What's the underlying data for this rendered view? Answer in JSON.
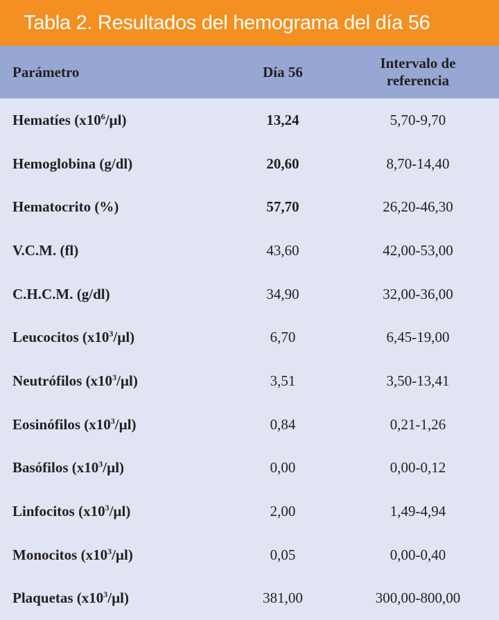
{
  "title": "Tabla 2. Resultados del hemograma del día 56",
  "headers": {
    "param": "Parámetro",
    "day": "Día 56",
    "ref_line1": "Intervalo de",
    "ref_line2": "referencia"
  },
  "rows": [
    {
      "pre": "Hematíes (x10",
      "sup": "6",
      "post": "/µl)",
      "value": "13,24",
      "bold": true,
      "ref": "5,70-9,70"
    },
    {
      "pre": "Hemoglobina (g/dl)",
      "sup": "",
      "post": "",
      "value": "20,60",
      "bold": true,
      "ref": "8,70-14,40"
    },
    {
      "pre": "Hematocrito (%)",
      "sup": "",
      "post": "",
      "value": "57,70",
      "bold": true,
      "ref": "26,20-46,30"
    },
    {
      "pre": "V.C.M. (fl)",
      "sup": "",
      "post": "",
      "value": "43,60",
      "bold": false,
      "ref": "42,00-53,00"
    },
    {
      "pre": "C.H.C.M. (g/dl)",
      "sup": "",
      "post": "",
      "value": "34,90",
      "bold": false,
      "ref": "32,00-36,00"
    },
    {
      "pre": "Leucocitos (x10",
      "sup": "3",
      "post": "/µl)",
      "value": "6,70",
      "bold": false,
      "ref": "6,45-19,00"
    },
    {
      "pre": "Neutrófilos (x10",
      "sup": "3",
      "post": "/µl)",
      "value": "3,51",
      "bold": false,
      "ref": "3,50-13,41"
    },
    {
      "pre": "Eosinófilos (x10",
      "sup": "3",
      "post": "/µl)",
      "value": "0,84",
      "bold": false,
      "ref": "0,21-1,26"
    },
    {
      "pre": "Basófilos (x10",
      "sup": "3",
      "post": "/µl)",
      "value": "0,00",
      "bold": false,
      "ref": "0,00-0,12"
    },
    {
      "pre": "Linfocitos (x10",
      "sup": "3",
      "post": "/µl)",
      "value": "2,00",
      "bold": false,
      "ref": "1,49-4,94"
    },
    {
      "pre": "Monocitos (x10",
      "sup": "3",
      "post": "/µl)",
      "value": "0,05",
      "bold": false,
      "ref": "0,00-0,40"
    },
    {
      "pre": "Plaquetas (x10",
      "sup": "3",
      "post": "/µl)",
      "value": "381,00",
      "bold": false,
      "ref": "300,00-800,00"
    }
  ]
}
